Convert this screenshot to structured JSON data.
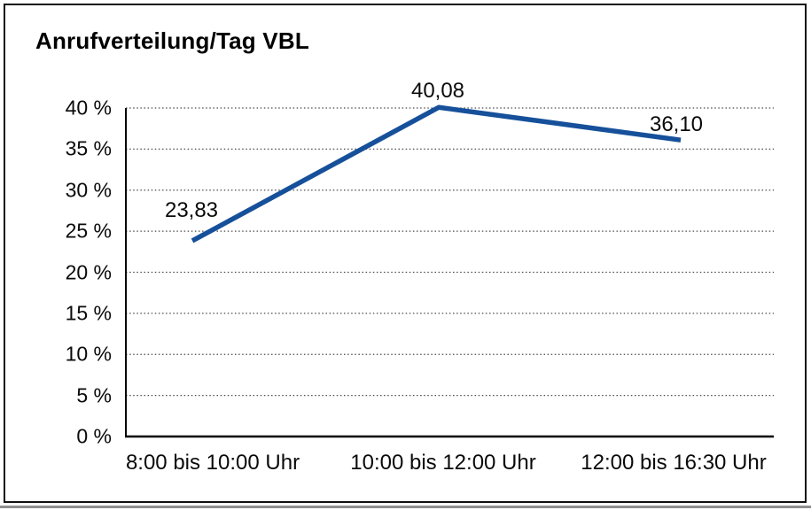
{
  "chart_data": {
    "type": "line",
    "title": "Anrufverteilung/Tag VBL",
    "categories": [
      "8:00 bis 10:00 Uhr",
      "10:00 bis 12:00 Uhr",
      "12:00 bis 16:30 Uhr"
    ],
    "values": [
      23.83,
      40.08,
      36.1
    ],
    "data_labels": [
      "23,83",
      "40,08",
      "36,10"
    ],
    "y_ticks": [
      {
        "v": 0,
        "label": "0 %"
      },
      {
        "v": 5,
        "label": "5 %"
      },
      {
        "v": 10,
        "label": "10 %"
      },
      {
        "v": 15,
        "label": "15 %"
      },
      {
        "v": 20,
        "label": "20 %"
      },
      {
        "v": 25,
        "label": "25 %"
      },
      {
        "v": 30,
        "label": "30 %"
      },
      {
        "v": 35,
        "label": "35 %"
      },
      {
        "v": 40,
        "label": "40 %"
      }
    ],
    "ylim": [
      0,
      40
    ],
    "xlabel": "",
    "ylabel": "",
    "grid": "horizontal-dotted",
    "legend": "none",
    "colors": {
      "line": "#16509a",
      "axis": "#000000",
      "gridline": "#4a4a4a",
      "text": "#000000",
      "frame_border": "#111111",
      "bottom_edge": "#8f8f8f"
    }
  }
}
